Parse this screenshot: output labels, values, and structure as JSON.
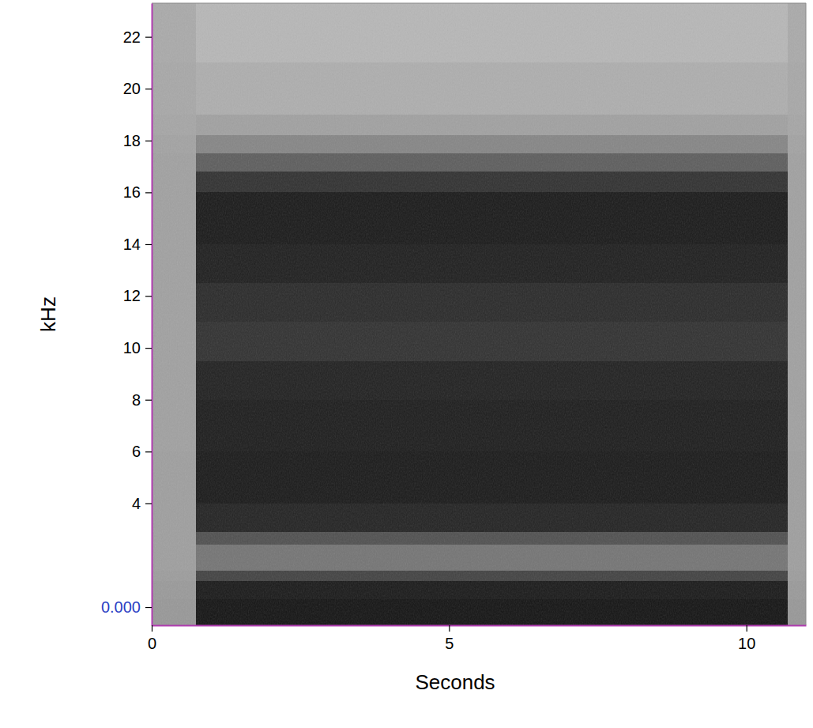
{
  "chart_data": {
    "type": "heatmap",
    "x_label": "Seconds",
    "y_label": "kHz",
    "xlim": [
      0,
      11
    ],
    "ylim": [
      -0.7,
      23.3
    ],
    "xticks": [
      0,
      5,
      10
    ],
    "yticks": [
      {
        "value": 0,
        "label": "0.000"
      },
      4,
      6,
      8,
      10,
      12,
      14,
      16,
      18,
      20,
      22
    ],
    "x_edges": [
      0,
      0.75,
      10.7,
      11
    ],
    "y_edges": [
      -0.7,
      0.3,
      1.0,
      1.4,
      2.4,
      2.9,
      4,
      6,
      8,
      9.5,
      11,
      12.5,
      14,
      16,
      16.8,
      17.5,
      18.2,
      19,
      21,
      23.3
    ],
    "zlim": [
      0,
      1
    ],
    "cells": [
      [
        0.34,
        0.33,
        0.32,
        0.31,
        0.31,
        0.31,
        0.31,
        0.3,
        0.3,
        0.3,
        0.3,
        0.3,
        0.3,
        0.3,
        0.3,
        0.29,
        0.28,
        0.27,
        0.26
      ],
      [
        0.93,
        0.9,
        0.72,
        0.5,
        0.66,
        0.86,
        0.9,
        0.89,
        0.87,
        0.8,
        0.83,
        0.88,
        0.9,
        0.8,
        0.6,
        0.42,
        0.3,
        0.24,
        0.2
      ],
      [
        0.34,
        0.33,
        0.32,
        0.31,
        0.31,
        0.31,
        0.31,
        0.3,
        0.3,
        0.3,
        0.3,
        0.3,
        0.3,
        0.3,
        0.3,
        0.29,
        0.28,
        0.27,
        0.26
      ]
    ]
  }
}
